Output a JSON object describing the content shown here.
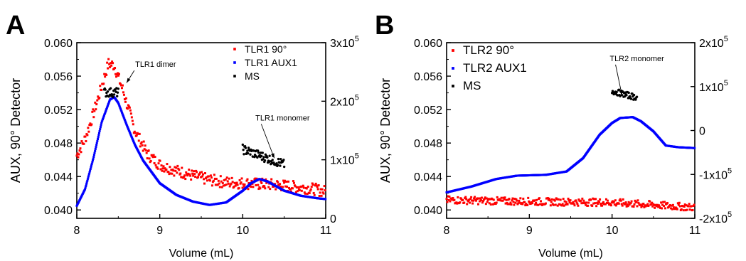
{
  "chart_data": [
    {
      "panel_label": "A",
      "type": "scatter",
      "xlabel": "Volume (mL)",
      "ylabel": "AUX, 90° Detector",
      "xlim": [
        8,
        11
      ],
      "ylim": [
        0.039,
        0.06
      ],
      "y2lim": [
        0,
        300000
      ],
      "x_ticks": [
        "8",
        "9",
        "10",
        "11"
      ],
      "y_ticks": [
        "0.040",
        "0.044",
        "0.048",
        "0.052",
        "0.056",
        "0.060"
      ],
      "y2_ticks": [
        {
          "v": 0,
          "base": "0",
          "exp": ""
        },
        {
          "v": 100000,
          "base": "1x10",
          "exp": "5"
        },
        {
          "v": 200000,
          "base": "2x10",
          "exp": "5"
        },
        {
          "v": 300000,
          "base": "3x10",
          "exp": "5"
        }
      ],
      "legend_position": "top-right",
      "grid": false,
      "series": [
        {
          "name": "TLR1 90°",
          "color": "#ff0000",
          "axis": "left",
          "noise": 0.0007,
          "points": [
            [
              8.0,
              0.0465
            ],
            [
              8.1,
              0.0485
            ],
            [
              8.2,
              0.0515
            ],
            [
              8.3,
              0.0548
            ],
            [
              8.38,
              0.0575
            ],
            [
              8.45,
              0.0573
            ],
            [
              8.55,
              0.0545
            ],
            [
              8.7,
              0.0495
            ],
            [
              8.85,
              0.0467
            ],
            [
              9.0,
              0.0454
            ],
            [
              9.2,
              0.0447
            ],
            [
              9.4,
              0.0441
            ],
            [
              9.6,
              0.0436
            ],
            [
              9.8,
              0.0433
            ],
            [
              10.0,
              0.0432
            ],
            [
              10.2,
              0.0431
            ],
            [
              10.4,
              0.043
            ],
            [
              10.6,
              0.0428
            ],
            [
              10.8,
              0.0426
            ],
            [
              11.0,
              0.0422
            ]
          ]
        },
        {
          "name": "TLR1 AUX1",
          "color": "#0000ff",
          "axis": "left",
          "noise": 0,
          "points": [
            [
              8.0,
              0.0405
            ],
            [
              8.1,
              0.0425
            ],
            [
              8.2,
              0.0462
            ],
            [
              8.3,
              0.0505
            ],
            [
              8.4,
              0.0532
            ],
            [
              8.45,
              0.0535
            ],
            [
              8.5,
              0.0528
            ],
            [
              8.6,
              0.0502
            ],
            [
              8.7,
              0.0478
            ],
            [
              8.8,
              0.0459
            ],
            [
              9.0,
              0.0432
            ],
            [
              9.2,
              0.0418
            ],
            [
              9.4,
              0.041
            ],
            [
              9.6,
              0.0406
            ],
            [
              9.8,
              0.0409
            ],
            [
              10.0,
              0.0423
            ],
            [
              10.1,
              0.0432
            ],
            [
              10.2,
              0.0437
            ],
            [
              10.3,
              0.0434
            ],
            [
              10.5,
              0.0423
            ],
            [
              10.7,
              0.0417
            ],
            [
              10.9,
              0.0414
            ],
            [
              11.0,
              0.0413
            ]
          ]
        },
        {
          "name": "MS",
          "color": "#000000",
          "axis": "right",
          "noise": 8000,
          "segments": [
            [
              [
                8.33,
                215000
              ],
              [
                8.5,
                215000
              ]
            ],
            [
              [
                10.0,
                118000
              ],
              [
                10.5,
                92000
              ]
            ]
          ]
        }
      ],
      "annotations": [
        {
          "text": "TLR1 dimer",
          "x": 8.95,
          "y": 0.0571,
          "ax": 8.6,
          "ay": 0.0552,
          "axis": "left"
        },
        {
          "text": "TLR1 monomer",
          "x": 10.48,
          "y": 0.0507,
          "ax": 10.38,
          "ay": 0.0462,
          "axis": "left"
        }
      ]
    },
    {
      "panel_label": "B",
      "type": "scatter",
      "xlabel": "Volume (mL)",
      "ylabel": "AUX, 90° Detector",
      "xlim": [
        8,
        11
      ],
      "ylim": [
        0.039,
        0.06
      ],
      "y2lim": [
        -200000,
        200000
      ],
      "x_ticks": [
        "8",
        "9",
        "10",
        "11"
      ],
      "y_ticks": [
        "0.040",
        "0.044",
        "0.048",
        "0.052",
        "0.056",
        "0.060"
      ],
      "y2_ticks": [
        {
          "v": -200000,
          "base": "-2x10",
          "exp": "5"
        },
        {
          "v": -100000,
          "base": "-1x10",
          "exp": "5"
        },
        {
          "v": 0,
          "base": "0",
          "exp": ""
        },
        {
          "v": 100000,
          "base": "1x10",
          "exp": "5"
        },
        {
          "v": 200000,
          "base": "2x10",
          "exp": "5"
        }
      ],
      "legend_position": "top-left",
      "grid": false,
      "series": [
        {
          "name": "TLR2 90°",
          "color": "#ff0000",
          "axis": "left",
          "noise": 0.00045,
          "points": [
            [
              8.0,
              0.0412
            ],
            [
              9.0,
              0.041
            ],
            [
              10.0,
              0.0409
            ],
            [
              11.0,
              0.0403
            ]
          ]
        },
        {
          "name": "TLR2 AUX1",
          "color": "#0000ff",
          "axis": "left",
          "noise": 0,
          "points": [
            [
              8.0,
              0.0421
            ],
            [
              8.3,
              0.0428
            ],
            [
              8.6,
              0.0437
            ],
            [
              8.85,
              0.0441
            ],
            [
              9.2,
              0.0442
            ],
            [
              9.45,
              0.0446
            ],
            [
              9.65,
              0.0462
            ],
            [
              9.85,
              0.049
            ],
            [
              10.0,
              0.0504
            ],
            [
              10.1,
              0.051
            ],
            [
              10.25,
              0.0511
            ],
            [
              10.35,
              0.0506
            ],
            [
              10.5,
              0.0494
            ],
            [
              10.65,
              0.0477
            ],
            [
              10.8,
              0.0475
            ],
            [
              11.0,
              0.0474
            ]
          ]
        },
        {
          "name": "MS",
          "color": "#000000",
          "axis": "right",
          "noise": 7000,
          "segments": [
            [
              [
                10.0,
                90000
              ],
              [
                10.3,
                75000
              ]
            ]
          ]
        }
      ],
      "annotations": [
        {
          "text": "TLR2 monomer",
          "x": 10.3,
          "y": 0.0578,
          "ax": 10.12,
          "ay": 0.0537,
          "axis": "left"
        }
      ]
    }
  ]
}
